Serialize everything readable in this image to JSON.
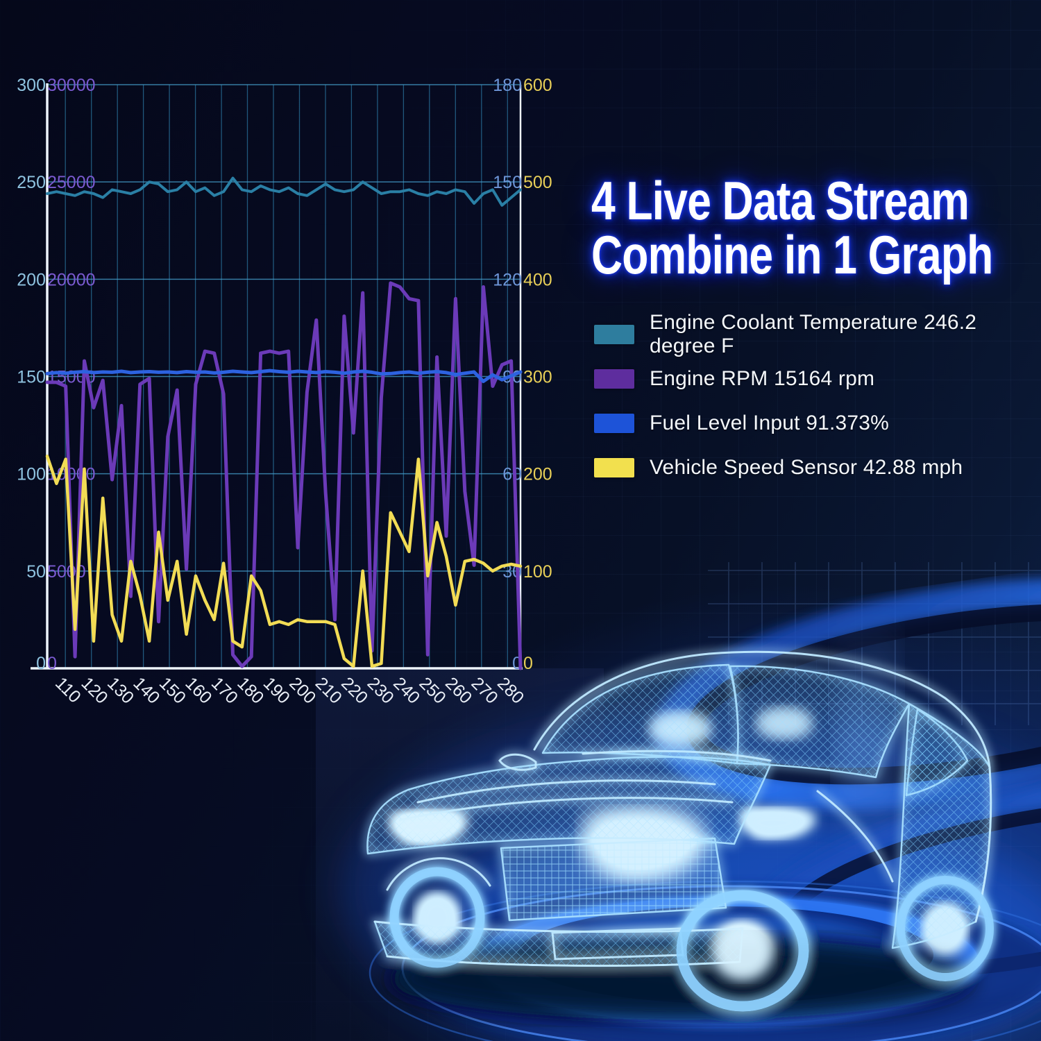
{
  "title": {
    "line1": "4 Live Data Stream",
    "line2": "Combine in 1 Graph"
  },
  "legend": [
    {
      "label": "Engine Coolant Temperature 246.2 degree F",
      "color": "#2e7d9e"
    },
    {
      "label": "Engine RPM 15164 rpm",
      "color": "#5e2d9e"
    },
    {
      "label": "Fuel Level Input 91.373%",
      "color": "#1d53d8"
    },
    {
      "label": "Vehicle Speed Sensor 42.88 mph",
      "color": "#f2e04e"
    }
  ],
  "chart_data": {
    "type": "line",
    "title": "",
    "grid": true,
    "legend_position": "right-of-chart",
    "x_axis": {
      "ticks": [
        110,
        120,
        130,
        140,
        150,
        160,
        170,
        180,
        190,
        200,
        210,
        220,
        230,
        240,
        250,
        260,
        270,
        280
      ],
      "data_x_start": 103,
      "data_x_end": 285,
      "points_per_series": 52,
      "tick_label_color": "#e9eef6"
    },
    "y_axes": [
      {
        "id": "coolant",
        "side": "left",
        "position": "outer",
        "range": [
          0,
          300
        ],
        "ticks": [
          0,
          50,
          100,
          150,
          200,
          250,
          300
        ],
        "color": "#8fc3e0"
      },
      {
        "id": "rpm",
        "side": "left",
        "position": "inner",
        "range": [
          0,
          30000
        ],
        "ticks": [
          0,
          5000,
          10000,
          15000,
          20000,
          25000,
          30000
        ],
        "color": "#7a5ad0"
      },
      {
        "id": "fuel",
        "side": "right",
        "position": "inner",
        "range": [
          0,
          180
        ],
        "ticks": [
          0,
          30,
          60,
          90,
          120,
          150,
          180
        ],
        "color": "#6e96d8"
      },
      {
        "id": "speed",
        "side": "right",
        "position": "outer",
        "range": [
          0,
          600
        ],
        "ticks": [
          0,
          100,
          200,
          300,
          400,
          500,
          600
        ],
        "color": "#e8cf58"
      }
    ],
    "series": [
      {
        "name": "Engine Coolant Temperature",
        "axis": "coolant",
        "unit": "degree F",
        "current_value": 246.2,
        "color": "#2a7fa5",
        "width": 4,
        "values": [
          244,
          245,
          244,
          243,
          245,
          244,
          242,
          246,
          245,
          244,
          246,
          250,
          249,
          245,
          246,
          250,
          245,
          247,
          243,
          245,
          252,
          246,
          245,
          248,
          246,
          245,
          247,
          244,
          243,
          246,
          249,
          246,
          245,
          246,
          250,
          247,
          244,
          245,
          245,
          246,
          244,
          243,
          245,
          244,
          246,
          245,
          239,
          244,
          246,
          238,
          242,
          246
        ]
      },
      {
        "name": "Engine RPM",
        "axis": "rpm",
        "unit": "rpm",
        "current_value": 15164,
        "color": "#6b3ab8",
        "width": 5,
        "values": [
          14700,
          14700,
          14500,
          600,
          15800,
          13400,
          14800,
          9700,
          13500,
          3700,
          14600,
          14900,
          2400,
          11900,
          14300,
          5100,
          14600,
          16300,
          16200,
          14100,
          700,
          100,
          600,
          16200,
          16300,
          16200,
          16300,
          6200,
          14200,
          17900,
          9000,
          2500,
          18100,
          12100,
          19300,
          900,
          13900,
          19800,
          19600,
          19000,
          18900,
          700,
          16000,
          6800,
          19000,
          9100,
          5300,
          19600,
          14500,
          15600,
          15800,
          0
        ]
      },
      {
        "name": "Vehicle Speed Sensor",
        "axis": "speed",
        "unit": "mph",
        "current_value": 42.88,
        "color": "#f2dc55",
        "width": 4.5,
        "values": [
          218,
          190,
          215,
          40,
          205,
          28,
          175,
          55,
          28,
          110,
          75,
          28,
          140,
          70,
          110,
          35,
          95,
          70,
          50,
          108,
          28,
          22,
          95,
          80,
          45,
          48,
          45,
          50,
          48,
          48,
          48,
          45,
          10,
          2,
          100,
          2,
          5,
          160,
          140,
          120,
          215,
          95,
          150,
          115,
          65,
          110,
          112,
          108,
          100,
          105,
          107,
          105
        ]
      },
      {
        "name": "Fuel Level Input",
        "axis": "fuel",
        "unit": "%",
        "current_value": 91.373,
        "color": "#2d62e0",
        "width": 5,
        "values": [
          90.9,
          91.2,
          91.0,
          91.3,
          91.5,
          91.2,
          91.4,
          91.3,
          91.6,
          91.2,
          91.4,
          91.5,
          91.3,
          91.4,
          91.2,
          91.5,
          91.3,
          91.4,
          91.1,
          91.3,
          91.6,
          91.4,
          91.2,
          91.5,
          91.8,
          91.5,
          91.3,
          91.6,
          91.4,
          91.2,
          91.5,
          91.3,
          91.0,
          91.4,
          91.6,
          91.3,
          90.8,
          90.9,
          91.2,
          91.4,
          91.0,
          91.3,
          91.5,
          91.2,
          90.6,
          91.0,
          91.4,
          88.5,
          90.5,
          89.0,
          90.2,
          91.4
        ]
      }
    ]
  }
}
